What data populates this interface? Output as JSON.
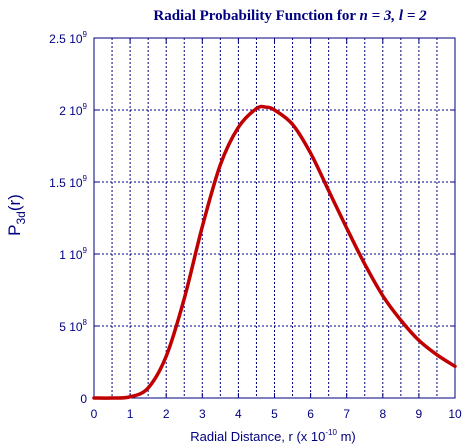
{
  "chart_data": {
    "type": "line",
    "title": {
      "prefix": "Radial Probability Function for ",
      "n_var": "n",
      "n_eq": " = 3, ",
      "l_var": "l",
      "l_eq": " = 2"
    },
    "xlabel": {
      "main": "Radial Distance, r (x 10",
      "exponent": "-10",
      "suffix": " m)"
    },
    "ylabel": {
      "main": "P",
      "subscript": "3d",
      "suffix": "(r)"
    },
    "xlim": [
      0,
      10
    ],
    "ylim": [
      0,
      2500000000.0
    ],
    "x_ticks": [
      "0",
      "1",
      "2",
      "3",
      "4",
      "5",
      "6",
      "7",
      "8",
      "9",
      "10"
    ],
    "y_ticks": [
      {
        "value": 0,
        "mantissa": "0",
        "exponent": ""
      },
      {
        "value": 500000000.0,
        "mantissa": "5 10",
        "exponent": "8"
      },
      {
        "value": 1000000000.0,
        "mantissa": "1 10",
        "exponent": "9"
      },
      {
        "value": 1500000000.0,
        "mantissa": "1.5 10",
        "exponent": "9"
      },
      {
        "value": 2000000000.0,
        "mantissa": "2 10",
        "exponent": "9"
      },
      {
        "value": 2500000000.0,
        "mantissa": "2.5 10",
        "exponent": "9"
      }
    ],
    "grid": true,
    "series": [
      {
        "color": "#c00000",
        "x": [
          0,
          0.5,
          1.0,
          1.5,
          2.0,
          2.5,
          3.0,
          3.5,
          4.0,
          4.5,
          4.76,
          5.0,
          5.5,
          6.0,
          6.5,
          7.0,
          7.5,
          8.0,
          8.5,
          9.0,
          9.5,
          10.0
        ],
        "y": [
          0,
          100000.0,
          8000000.0,
          70000000.0,
          290000000.0,
          690000000.0,
          1190000000.0,
          1620000000.0,
          1880000000.0,
          2010000000.0,
          2020000000.0,
          2000000000.0,
          1900000000.0,
          1700000000.0,
          1440000000.0,
          1180000000.0,
          930000000.0,
          710000000.0,
          540000000.0,
          400000000.0,
          300000000.0,
          220000000.0
        ]
      }
    ]
  }
}
